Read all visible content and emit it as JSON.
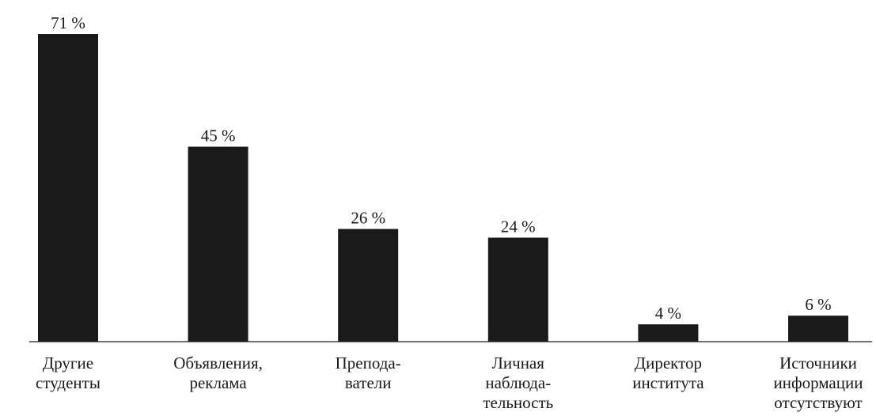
{
  "chart_data": {
    "type": "bar",
    "title": "",
    "xlabel": "",
    "ylabel": "",
    "ylim": [
      0,
      71
    ],
    "grid": false,
    "legend": "none",
    "bar_color": "#1a1a1a",
    "categories": [
      [
        "Другие",
        "студенты"
      ],
      [
        "Объявления,",
        "реклама"
      ],
      [
        "Препода-",
        "ватели"
      ],
      [
        "Личная",
        "наблюда-",
        "тельность"
      ],
      [
        "Директор",
        "института"
      ],
      [
        "Источники",
        "информации",
        "отсутствуют"
      ]
    ],
    "values": [
      71,
      45,
      26,
      24,
      4,
      6
    ],
    "value_labels": [
      "71 %",
      "45 %",
      "26 %",
      "24 %",
      "4 %",
      "6 %"
    ]
  }
}
